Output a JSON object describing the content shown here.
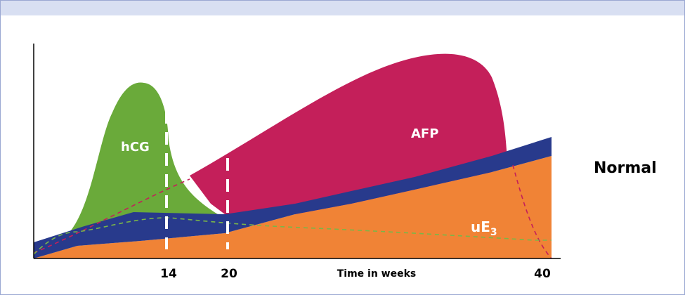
{
  "chart_data": {
    "type": "area",
    "xlabel": "Time in weeks",
    "x_ticks": [
      "14",
      "20",
      "40"
    ],
    "status": "Normal",
    "series": [
      {
        "name": "hCG",
        "color": "#6aaa3a"
      },
      {
        "name": "AFP",
        "color": "#c41f5a"
      },
      {
        "name": "uE3",
        "color": "#f08336"
      }
    ],
    "band_color": "#283a8c",
    "marker_weeks": [
      14,
      20
    ],
    "grid": false,
    "legend": "none"
  }
}
